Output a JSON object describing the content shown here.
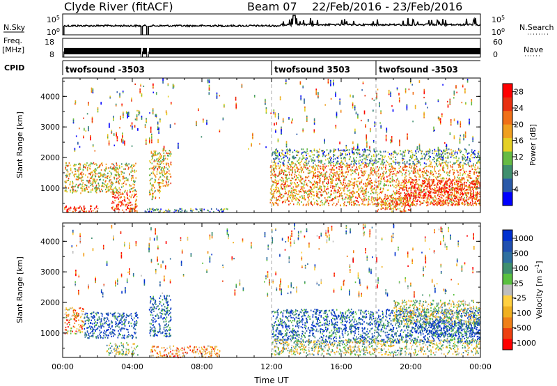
{
  "header": {
    "station": "Clyde River (fitACF)",
    "beam": "Beam 07",
    "date_range": "22/Feb/2016 - 23/Feb/2016"
  },
  "nsky": {
    "label": "N.Sky",
    "right_label": "N.Search",
    "ticks_left": [
      "10^5",
      "10^0"
    ],
    "ticks_right": [
      "10^5",
      "10^0"
    ],
    "gaps_hours": [
      [
        0.0,
        0.07
      ],
      [
        4.5,
        4.58
      ],
      [
        4.83,
        4.93
      ]
    ],
    "baseline": "near 10^3",
    "spike_hour": 13.3
  },
  "freq": {
    "label_lines": [
      "Freq.",
      "[MHz]"
    ],
    "right_label": "Nave",
    "ticks_left": [
      "18",
      "8"
    ],
    "ticks_right": [
      "60",
      "0"
    ],
    "range_left": [
      8,
      18
    ],
    "range_right": [
      0,
      60
    ],
    "approx_freq_mhz": 11,
    "gaps_hours": [
      [
        0.0,
        0.07
      ],
      [
        4.5,
        4.58
      ],
      [
        4.83,
        4.93
      ]
    ]
  },
  "cpid": {
    "label": "CPID",
    "segments": [
      {
        "start_hour": 0.0,
        "end_hour": 12.0,
        "text": "twofsound -3503"
      },
      {
        "start_hour": 12.0,
        "end_hour": 18.0,
        "text": "twofsound 3503"
      },
      {
        "start_hour": 18.0,
        "end_hour": 24.0,
        "text": "twofsound -3503"
      }
    ]
  },
  "colors": {
    "power": [
      "#0000ff",
      "#2b5aa8",
      "#3f8f6e",
      "#66bb44",
      "#e5d025",
      "#f0a020",
      "#f07018",
      "#e83010",
      "#ff0000"
    ],
    "velocity": [
      "#ff0000",
      "#ee4010",
      "#f08018",
      "#f0b020",
      "#ffd040",
      "#bebebe",
      "#5ac040",
      "#3f8f6e",
      "#2f70a0",
      "#2050b0",
      "#0030d0"
    ]
  },
  "chart_data": [
    {
      "type": "heatmap",
      "ylabel": "Slant Range [km]",
      "ylim": [
        200,
        4600
      ],
      "yticks": [
        "1000",
        "2000",
        "3000",
        "4000"
      ],
      "xlim_hours": [
        0,
        24
      ],
      "xticks": [],
      "colorbar_label": "Power [dB]",
      "colorbar_ticks": [
        "4",
        "8",
        "12",
        "16",
        "20",
        "24",
        "28"
      ],
      "colorbar_range": [
        0,
        30
      ],
      "vertical_markers_hours": [
        12,
        18
      ],
      "regions": [
        {
          "t0": 0.1,
          "t1": 4.2,
          "r0": 850,
          "r1": 1850,
          "level": 0.55
        },
        {
          "t0": 2.8,
          "t1": 4.3,
          "r0": 200,
          "r1": 900,
          "level": 0.85
        },
        {
          "t0": 0.0,
          "t1": 2.0,
          "r0": 200,
          "r1": 450,
          "level": 0.9
        },
        {
          "t0": 4.95,
          "t1": 6.2,
          "r0": 1050,
          "r1": 2250,
          "level": 0.55
        },
        {
          "t0": 4.95,
          "t1": 5.6,
          "r0": 650,
          "r1": 1100,
          "level": 0.55
        },
        {
          "t0": 4.6,
          "t1": 9.5,
          "r0": 200,
          "r1": 350,
          "level": 0.2
        },
        {
          "t0": 11.9,
          "t1": 24.0,
          "r0": 450,
          "r1": 1800,
          "level": 0.65
        },
        {
          "t0": 19.5,
          "t1": 24.0,
          "r0": 450,
          "r1": 1300,
          "level": 0.95
        },
        {
          "t0": 18.0,
          "t1": 20.0,
          "r0": 250,
          "r1": 700,
          "level": 0.7
        },
        {
          "t0": 12.0,
          "t1": 24.0,
          "r0": 1800,
          "r1": 2300,
          "level": 0.3
        }
      ]
    },
    {
      "type": "heatmap",
      "ylabel": "Slant Range [km]",
      "ylim": [
        200,
        4600
      ],
      "yticks": [
        "1000",
        "2000",
        "3000",
        "4000"
      ],
      "xlim_hours": [
        0,
        24
      ],
      "xticks": [
        "00:00",
        "04:00",
        "08:00",
        "12:00",
        "16:00",
        "20:00",
        "00:00"
      ],
      "xlabel": "Time UT",
      "colorbar_label": "Velocity [m s^-1]",
      "colorbar_ticks": [
        "1000",
        "500",
        "100",
        "25",
        "-25",
        "-100",
        "-500",
        "-1000"
      ],
      "colorbar_range": [
        -1000,
        1000
      ],
      "vertical_markers_hours": [
        12,
        18
      ],
      "regions": [
        {
          "t0": 0.1,
          "t1": 1.2,
          "r0": 1000,
          "r1": 1850,
          "level": 0.3
        },
        {
          "t0": 1.2,
          "t1": 4.3,
          "r0": 850,
          "r1": 1700,
          "level": 0.9
        },
        {
          "t0": 2.5,
          "t1": 4.3,
          "r0": 300,
          "r1": 700,
          "level": 0.55
        },
        {
          "t0": 4.95,
          "t1": 6.2,
          "r0": 900,
          "r1": 2250,
          "level": 0.85
        },
        {
          "t0": 5.0,
          "t1": 9.0,
          "r0": 200,
          "r1": 600,
          "level": 0.25
        },
        {
          "t0": 12.0,
          "t1": 24.0,
          "r0": 700,
          "r1": 1800,
          "level": 0.85
        },
        {
          "t0": 12.0,
          "t1": 24.0,
          "r0": 300,
          "r1": 800,
          "level": 0.5
        },
        {
          "t0": 19.0,
          "t1": 24.0,
          "r0": 1300,
          "r1": 2100,
          "level": 0.5
        },
        {
          "t0": 20.5,
          "t1": 24.0,
          "r0": 900,
          "r1": 1400,
          "level": 0.9
        }
      ]
    }
  ]
}
